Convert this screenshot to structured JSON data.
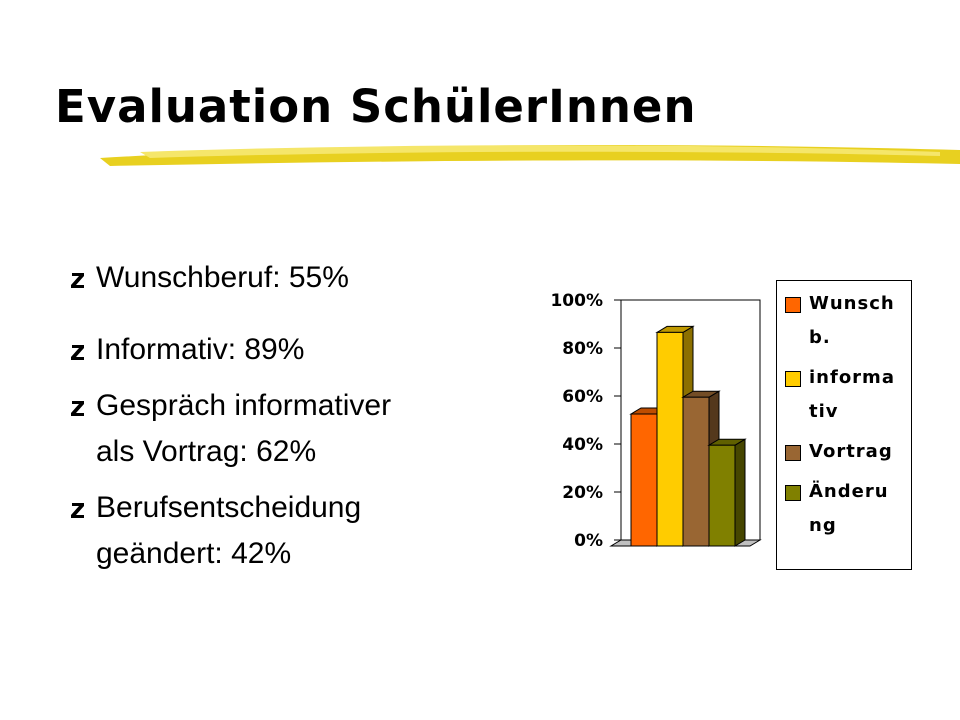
{
  "title": "Evaluation SchülerInnen",
  "bullets": [
    "Wunschberuf: 55%",
    "Informativ: 89%",
    "Gespräch informativer als Vortrag: 62%",
    "Berufsentscheidung geändert: 42%"
  ],
  "chart_data": {
    "type": "bar",
    "series": [
      {
        "name": "Wunschb.",
        "color": "#ff6600",
        "values": [
          55
        ]
      },
      {
        "name": "informativ",
        "color": "#ffcc00",
        "values": [
          89
        ]
      },
      {
        "name": "Vortrag",
        "color": "#996633",
        "values": [
          62
        ]
      },
      {
        "name": "Änderung",
        "color": "#808000",
        "values": [
          42
        ]
      }
    ],
    "ylim": [
      0,
      100
    ],
    "yticks": [
      {
        "value": 0,
        "label": "0%"
      },
      {
        "value": 20,
        "label": "20%"
      },
      {
        "value": 40,
        "label": "40%"
      },
      {
        "value": 60,
        "label": "60%"
      },
      {
        "value": 80,
        "label": "80%"
      },
      {
        "value": 100,
        "label": "100%"
      }
    ],
    "legend": "right"
  }
}
